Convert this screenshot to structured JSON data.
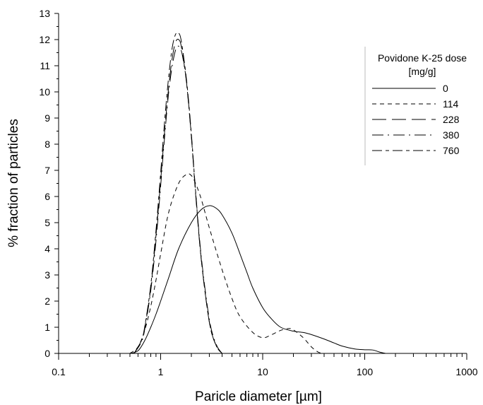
{
  "chart_data": {
    "type": "line",
    "title": "",
    "xlabel": "Paricle diameter [µm]",
    "ylabel": "% fraction of particles",
    "xscale": "log",
    "xlim": [
      0.1,
      1000
    ],
    "ylim": [
      0,
      13
    ],
    "grid": false,
    "x_ticks": [
      "0.1",
      "1",
      "10",
      "100",
      "1000"
    ],
    "y_ticks": [
      "0",
      "1",
      "2",
      "3",
      "4",
      "5",
      "6",
      "7",
      "8",
      "9",
      "10",
      "11",
      "12",
      "13"
    ],
    "legend": {
      "title_line1": "Povidone K-25 dose",
      "title_line2": "[mg/g]",
      "placement": "top-right"
    },
    "series": [
      {
        "name": "0",
        "dash": "solid",
        "x": [
          0.5,
          0.6,
          0.7,
          0.8,
          0.9,
          1.0,
          1.2,
          1.5,
          2.0,
          2.5,
          3.0,
          3.5,
          4.0,
          5.0,
          6.0,
          7.0,
          8.0,
          10.0,
          12.0,
          15.0,
          20.0,
          25.0,
          30.0,
          40.0,
          50.0,
          60.0,
          80.0,
          100.0,
          120.0,
          140.0,
          160.0
        ],
        "y": [
          0.0,
          0.1,
          0.5,
          1.0,
          1.5,
          2.0,
          2.9,
          4.0,
          5.0,
          5.5,
          5.65,
          5.55,
          5.3,
          4.6,
          3.8,
          3.1,
          2.5,
          1.75,
          1.35,
          1.0,
          0.85,
          0.8,
          0.72,
          0.55,
          0.4,
          0.28,
          0.17,
          0.14,
          0.13,
          0.05,
          0.0
        ]
      },
      {
        "name": "114",
        "dash": "short-dash",
        "x": [
          0.5,
          0.6,
          0.7,
          0.8,
          0.9,
          1.0,
          1.2,
          1.5,
          1.8,
          2.0,
          2.2,
          2.5,
          3.0,
          4.0,
          5.0,
          6.0,
          8.0,
          10.0,
          12.0,
          15.0,
          18.0,
          20.0,
          25.0,
          30.0,
          35.0,
          40.0
        ],
        "y": [
          0.0,
          0.25,
          0.9,
          1.8,
          2.8,
          3.8,
          5.4,
          6.5,
          6.85,
          6.8,
          6.5,
          5.9,
          4.8,
          3.2,
          2.1,
          1.4,
          0.8,
          0.6,
          0.7,
          0.88,
          0.95,
          0.9,
          0.6,
          0.25,
          0.05,
          0.0
        ]
      },
      {
        "name": "228",
        "dash": "long-dash",
        "x": [
          0.55,
          0.65,
          0.7,
          0.8,
          0.9,
          1.0,
          1.1,
          1.2,
          1.3,
          1.4,
          1.5,
          1.6,
          1.8,
          2.0,
          2.2,
          2.5,
          3.0,
          3.5,
          4.0
        ],
        "y": [
          0.0,
          0.5,
          1.0,
          2.5,
          4.5,
          6.6,
          8.6,
          10.2,
          11.3,
          11.9,
          12.0,
          11.7,
          10.3,
          8.3,
          6.1,
          3.6,
          1.2,
          0.3,
          0.0
        ]
      },
      {
        "name": "380",
        "dash": "dash-dot",
        "x": [
          0.55,
          0.65,
          0.7,
          0.8,
          0.9,
          1.0,
          1.1,
          1.2,
          1.3,
          1.4,
          1.5,
          1.6,
          1.7,
          1.8,
          2.0,
          2.2,
          2.5,
          3.0,
          3.5,
          4.0
        ],
        "y": [
          0.0,
          0.45,
          0.95,
          2.4,
          4.3,
          6.4,
          8.4,
          10.0,
          11.0,
          11.6,
          11.75,
          11.55,
          11.0,
          10.3,
          8.3,
          6.2,
          3.7,
          1.3,
          0.35,
          0.0
        ]
      },
      {
        "name": "760",
        "dash": "long-short",
        "x": [
          0.55,
          0.65,
          0.7,
          0.8,
          0.9,
          1.0,
          1.1,
          1.2,
          1.3,
          1.4,
          1.5,
          1.6,
          1.8,
          2.0,
          2.2,
          2.5,
          3.0,
          3.5,
          4.0
        ],
        "y": [
          0.0,
          0.5,
          1.05,
          2.6,
          4.7,
          6.9,
          9.0,
          10.6,
          11.7,
          12.2,
          12.25,
          11.9,
          10.4,
          8.4,
          6.2,
          3.6,
          1.2,
          0.3,
          0.0
        ]
      }
    ]
  }
}
